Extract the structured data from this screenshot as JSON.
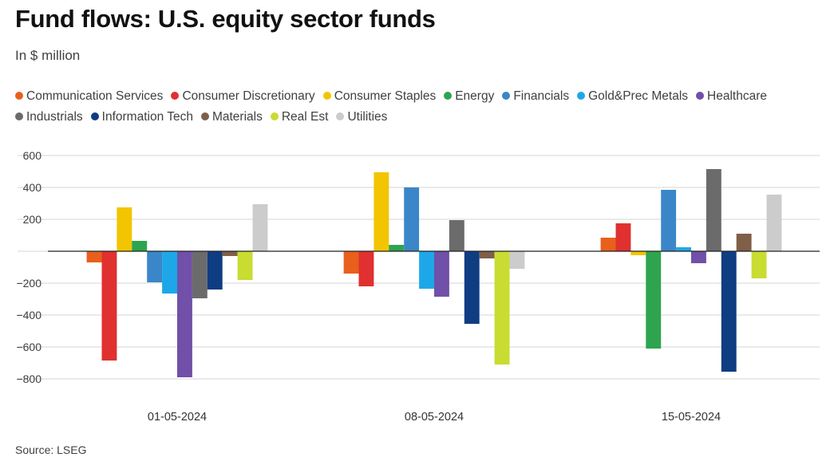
{
  "header": {
    "title": "Fund flows: U.S. equity sector funds",
    "subtitle": "In $ million"
  },
  "footer": {
    "source": "Source: LSEG"
  },
  "chart_data": {
    "type": "bar",
    "title": "Fund flows: U.S. equity sector funds",
    "subtitle": "In $ million",
    "xlabel": "",
    "ylabel": "",
    "ylim": [
      -800,
      600
    ],
    "yticks": [
      600,
      400,
      200,
      0,
      -200,
      -400,
      -600,
      -800
    ],
    "ytick_labels": [
      "600",
      "400",
      "200",
      "",
      "−200",
      "−400",
      "−600",
      "−800"
    ],
    "grid": true,
    "legend_position": "top",
    "categories": [
      "01-05-2024",
      "08-05-2024",
      "15-05-2024"
    ],
    "series": [
      {
        "name": "Communication Services",
        "color": "#e8601c",
        "values": [
          -70,
          -140,
          85
        ]
      },
      {
        "name": "Consumer Discretionary",
        "color": "#e03030",
        "values": [
          -685,
          -220,
          175
        ]
      },
      {
        "name": "Consumer Staples",
        "color": "#f2c500",
        "values": [
          275,
          495,
          -25
        ]
      },
      {
        "name": "Energy",
        "color": "#2ea44f",
        "values": [
          65,
          40,
          -610
        ]
      },
      {
        "name": "Financials",
        "color": "#3a86c8",
        "values": [
          -195,
          400,
          385
        ]
      },
      {
        "name": "Gold&Prec Metals",
        "color": "#1ea7e8",
        "values": [
          -265,
          -235,
          25
        ]
      },
      {
        "name": "Healthcare",
        "color": "#7050a8",
        "values": [
          -790,
          -285,
          -75
        ]
      },
      {
        "name": "Industrials",
        "color": "#6b6b6b",
        "values": [
          -295,
          195,
          515
        ]
      },
      {
        "name": "Information Tech",
        "color": "#0f3d82",
        "values": [
          -240,
          -455,
          -755
        ]
      },
      {
        "name": "Materials",
        "color": "#7f5f48",
        "values": [
          -30,
          -45,
          110
        ]
      },
      {
        "name": "Real Est",
        "color": "#c8dc32",
        "values": [
          -180,
          -710,
          -170
        ]
      },
      {
        "name": "Utilities",
        "color": "#cccccc",
        "values": [
          295,
          -110,
          355
        ]
      }
    ]
  }
}
